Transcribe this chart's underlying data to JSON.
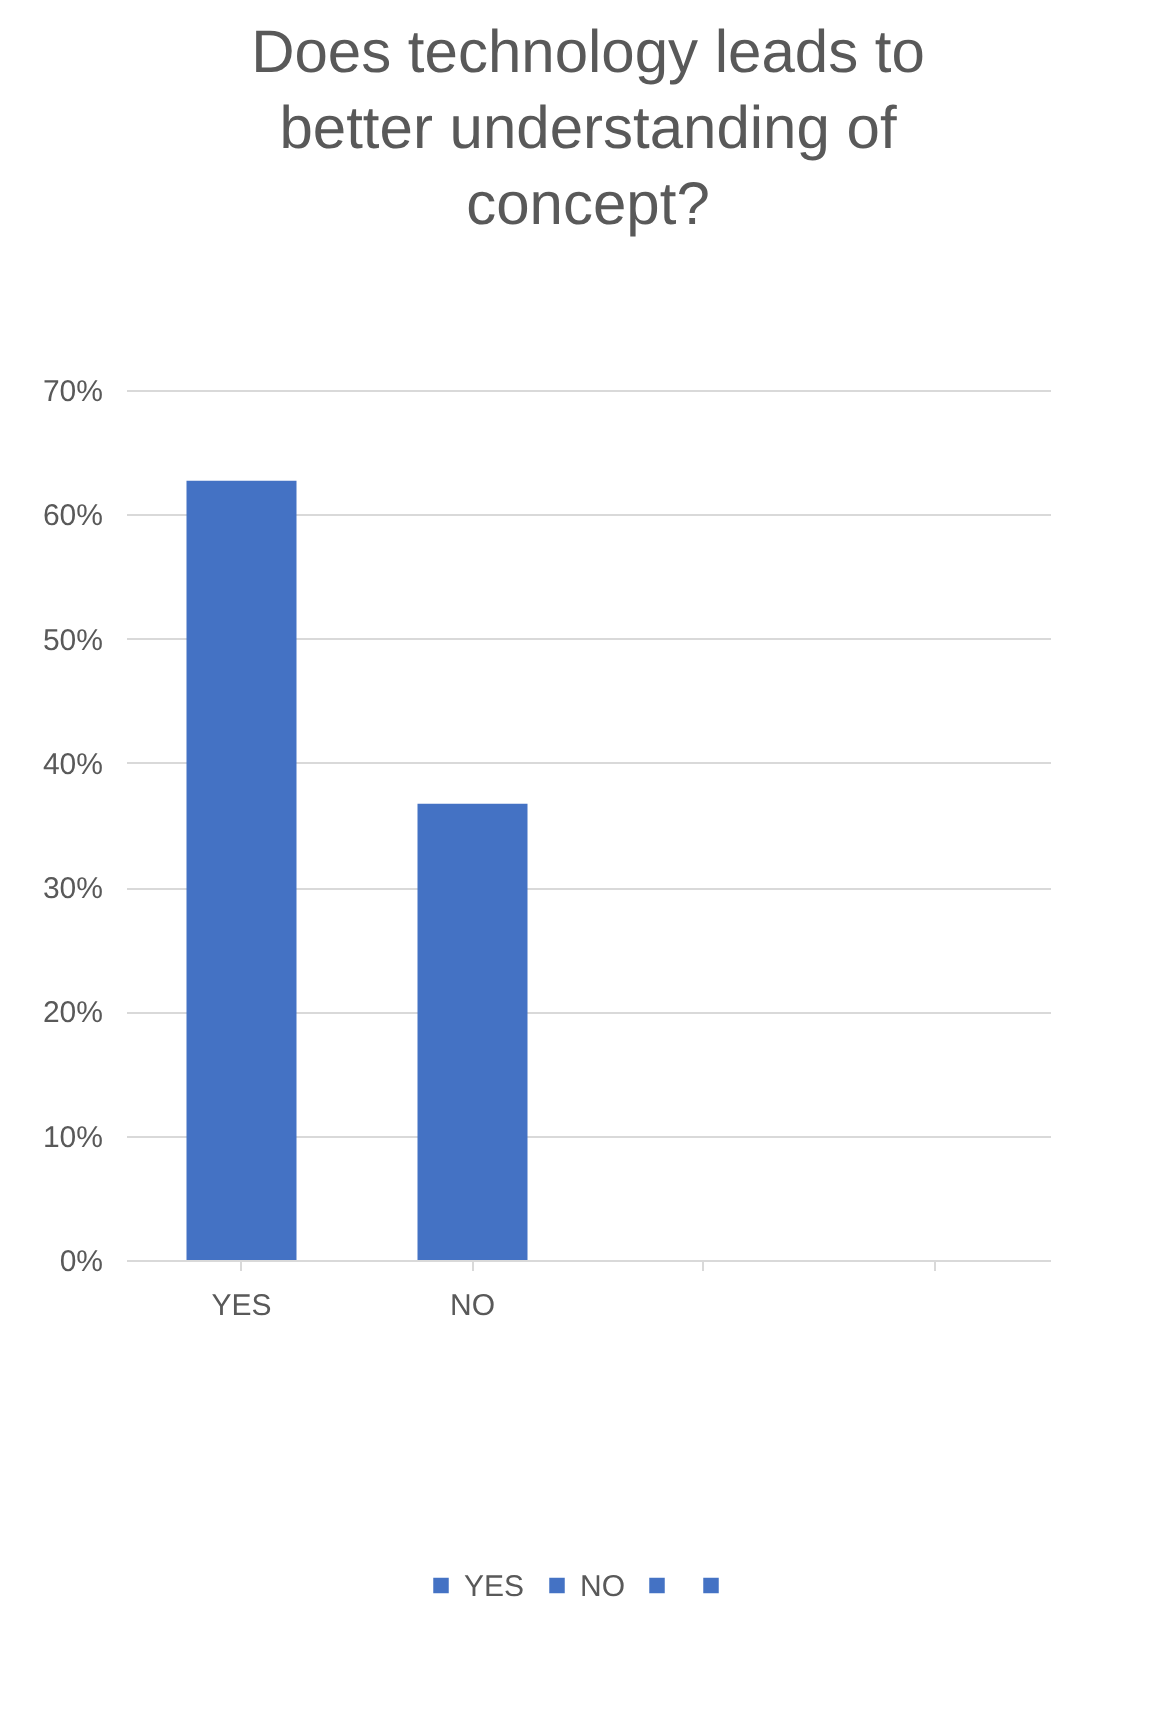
{
  "chart_data": {
    "type": "bar",
    "title": "Does technology leads to better understanding of concept?",
    "categories": [
      "YES",
      "NO",
      null,
      null
    ],
    "series": [
      {
        "name": "YES",
        "color": "#4472c4",
        "values": [
          62.7,
          null,
          null,
          null
        ]
      },
      {
        "name": "NO",
        "color": "#4472c4",
        "values": [
          null,
          36.7,
          null,
          null
        ]
      },
      {
        "color": "#4472c4",
        "values": [
          null,
          null,
          null,
          null
        ]
      },
      {
        "color": "#4472c4",
        "values": [
          null,
          null,
          null,
          null
        ]
      }
    ],
    "ylim": [
      0,
      70
    ],
    "yticks": [
      {
        "value": 0,
        "label": "0%"
      },
      {
        "value": 10,
        "label": "10%"
      },
      {
        "value": 20,
        "label": "20%"
      },
      {
        "value": 30,
        "label": "30%"
      },
      {
        "value": 40,
        "label": "40%"
      },
      {
        "value": 50,
        "label": "50%"
      },
      {
        "value": 60,
        "label": "60%"
      },
      {
        "value": 70,
        "label": "70%"
      }
    ],
    "grid": "y",
    "legend": "bottom"
  }
}
